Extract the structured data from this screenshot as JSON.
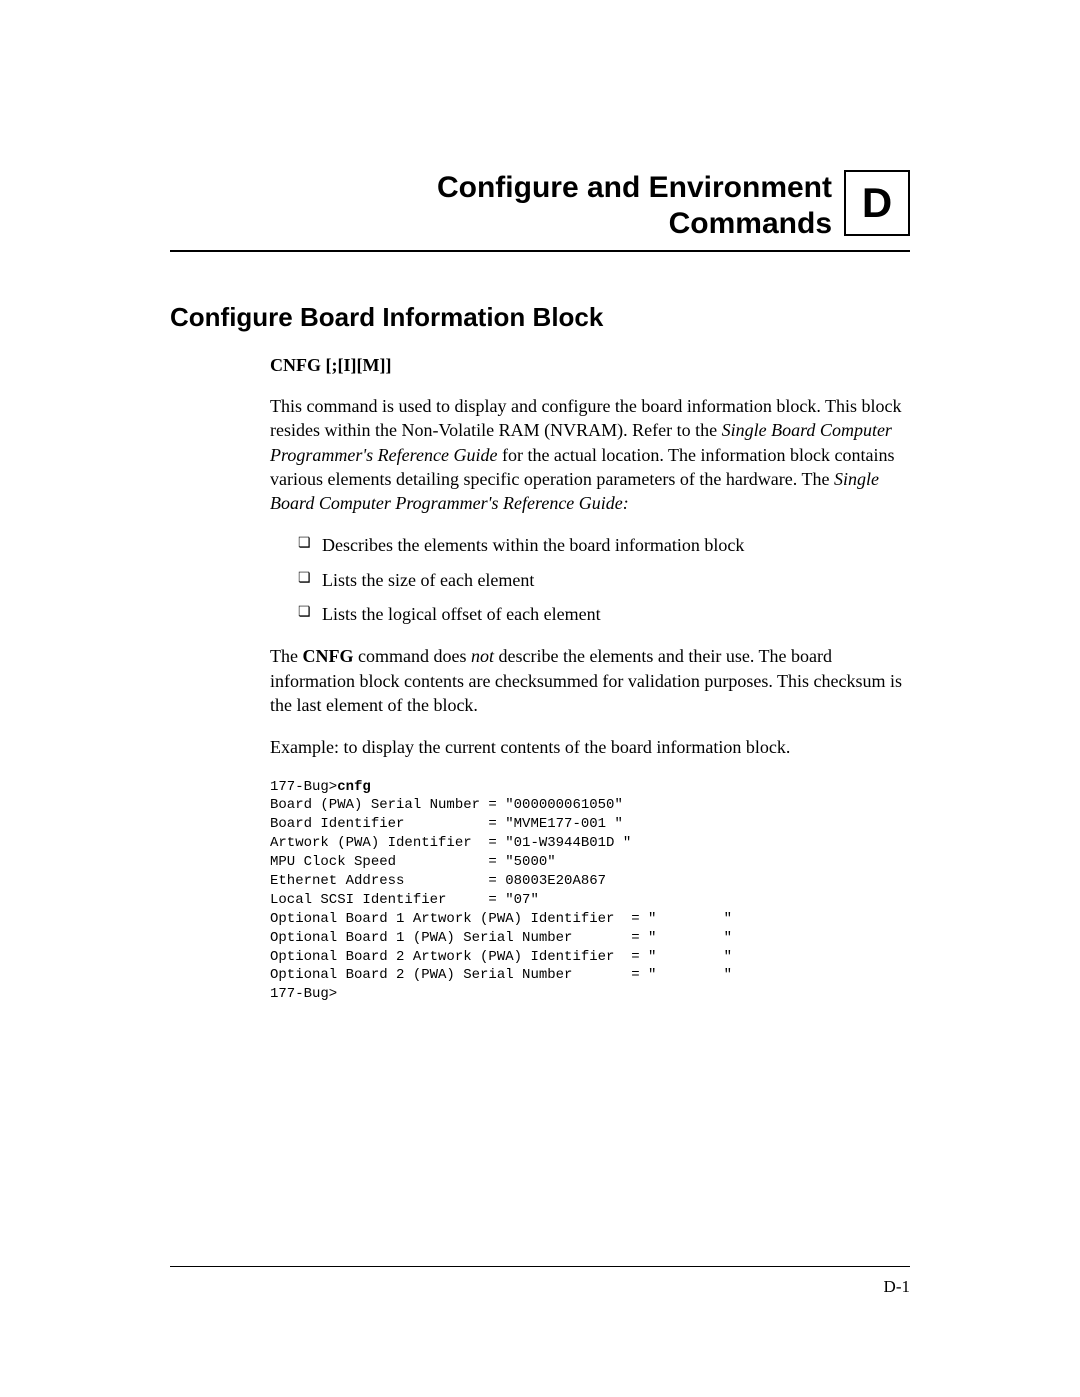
{
  "header": {
    "chapter_title_line1": "Configure and Environment",
    "chapter_title_line2": "Commands",
    "chapter_letter": "D"
  },
  "section": {
    "title": "Configure Board Information Block",
    "syntax": "CNFG [;[I][M]]",
    "para1_a": "This command is used to display and configure the board information block. This block resides within the Non-Volatile RAM (NVRAM). Refer to the ",
    "para1_ital1": "Single Board Computer Programmer's Reference Guide",
    "para1_b": " for the actual location. The information block contains various elements detailing specific operation parameters of the hardware. The ",
    "para1_ital2": "Single Board Computer Programmer's Reference Guide:",
    "bullets": [
      "Describes the elements within the board information block",
      "Lists the size of each element",
      "Lists the logical offset of each element"
    ],
    "para2_a": "The ",
    "para2_bold": "CNFG",
    "para2_b": " command does ",
    "para2_ital": "not",
    "para2_c": " describe the elements and their use. The board information block contents are checksummed for validation purposes. This checksum is the last element of the block.",
    "para3": "Example: to display the current contents of the board information block.",
    "code_prompt": "177-Bug>",
    "code_cmd": "cnfg",
    "code_lines": [
      "Board (PWA) Serial Number = \"000000061050\"",
      "Board Identifier          = \"MVME177-001 \"",
      "Artwork (PWA) Identifier  = \"01-W3944B01D \"",
      "MPU Clock Speed           = \"5000\"",
      "Ethernet Address          = 08003E20A867",
      "Local SCSI Identifier     = \"07\"",
      "Optional Board 1 Artwork (PWA) Identifier  = \"        \"",
      "Optional Board 1 (PWA) Serial Number       = \"        \"",
      "Optional Board 2 Artwork (PWA) Identifier  = \"        \"",
      "Optional Board 2 (PWA) Serial Number       = \"        \"",
      "177-Bug>"
    ]
  },
  "footer": {
    "page_label": "D-1"
  },
  "style": {
    "page_bg": "#ffffff",
    "text_color": "#000000",
    "chapter_title_fontsize": 30,
    "chapter_badge_fontsize": 42,
    "section_title_fontsize": 26,
    "body_fontsize": 18,
    "code_fontsize": 14,
    "rule_color": "#000000"
  }
}
